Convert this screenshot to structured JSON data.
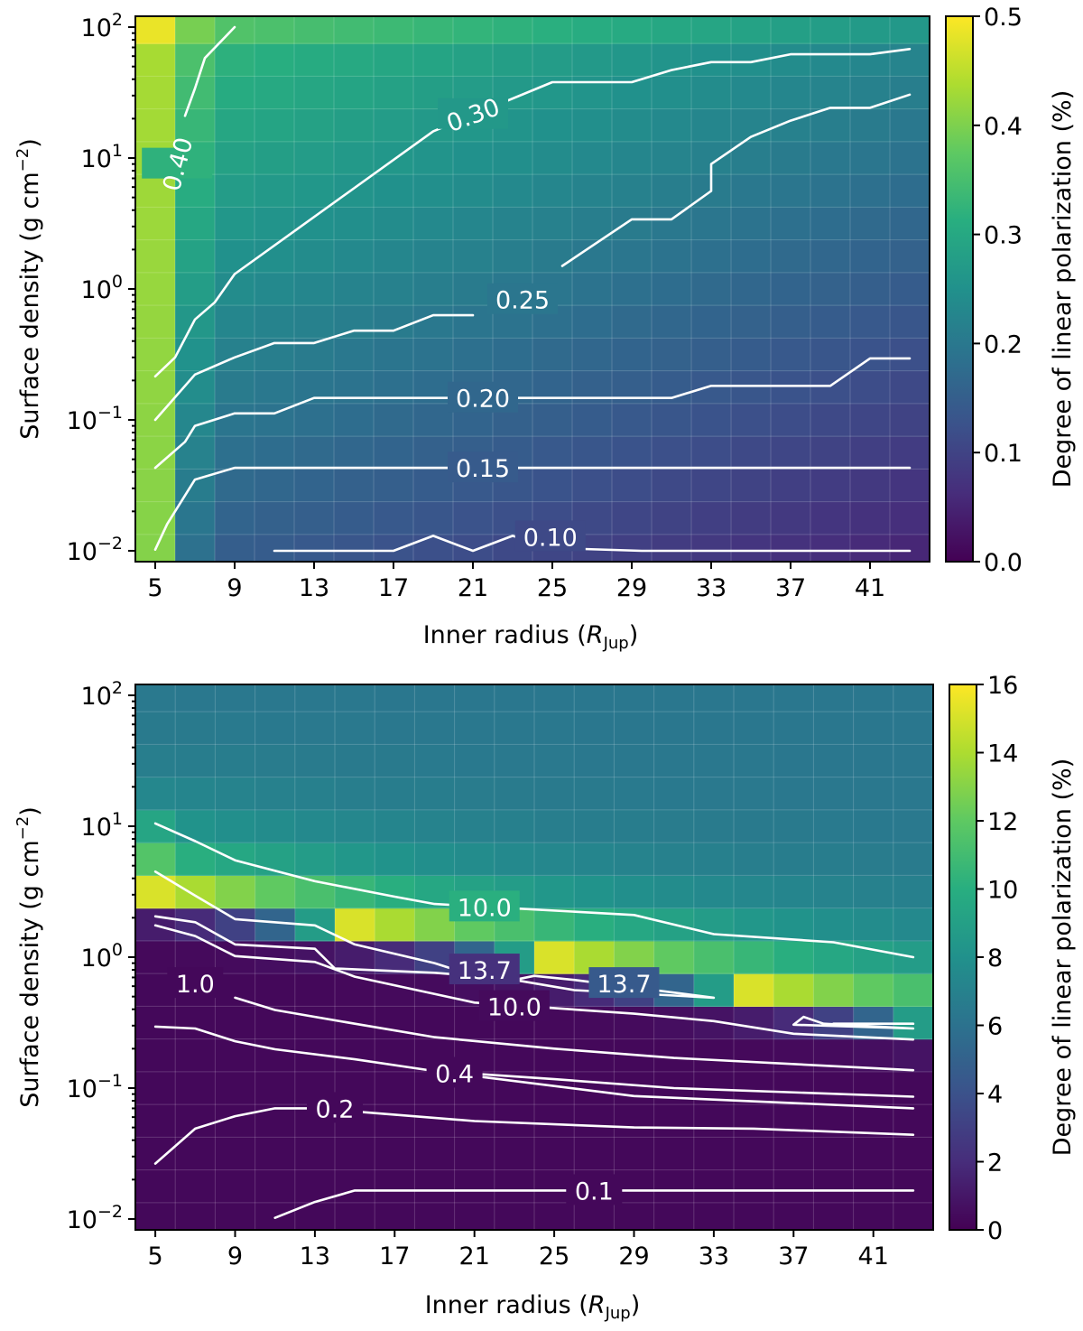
{
  "chart_data": [
    {
      "type": "heatmap",
      "panel": "top",
      "xlabel": "Inner radius (R_Jup)",
      "xlabel_main": "Inner radius (",
      "xlabel_symbol": "R",
      "xlabel_sub": "Jup",
      "xlabel_close": ")",
      "ylabel": "Surface density (g cm^-2)",
      "ylabel_main": "Surface density (g cm",
      "ylabel_sup": "−2",
      "ylabel_close": ")",
      "colorbar_label": "Degree of linear polarization (%)",
      "colorbar_range": [
        0,
        0.5
      ],
      "colorbar_ticks": [
        "0.0",
        "0.1",
        "0.2",
        "0.3",
        "0.4",
        "0.5"
      ],
      "x_ticks": [
        "5",
        "9",
        "13",
        "17",
        "21",
        "25",
        "29",
        "33",
        "37",
        "41"
      ],
      "y_ticks": [
        {
          "base": "10",
          "exp": "2"
        },
        {
          "base": "10",
          "exp": "1"
        },
        {
          "base": "10",
          "exp": "0"
        },
        {
          "base": "10",
          "exp": "−1"
        },
        {
          "base": "10",
          "exp": "−2"
        }
      ],
      "x_range": [
        4,
        44
      ],
      "y_range_log10": [
        -2.083,
        2.083
      ],
      "x_values": [
        5,
        7,
        9,
        11,
        13,
        15,
        17,
        19,
        21,
        23,
        25,
        27,
        29,
        31,
        33,
        35,
        37,
        39,
        41,
        43
      ],
      "y_log10_values": [
        -2.0,
        -1.75,
        -1.5,
        -1.25,
        -1.0,
        -0.75,
        -0.5,
        -0.25,
        0.0,
        0.25,
        0.5,
        0.75,
        1.0,
        1.25,
        1.5,
        1.75,
        2.0
      ],
      "z_model": {
        "left_column": [
          0.41,
          0.42,
          0.43,
          0.44,
          0.45,
          0.46,
          0.47
        ],
        "description": "values increase with surface density; first column highest"
      },
      "contours": [
        {
          "level": "0.10",
          "label": "0.10",
          "points": [
            [
              11,
              0.01
            ],
            [
              17,
              0.01
            ],
            [
              19,
              0.013
            ],
            [
              21,
              0.01
            ],
            [
              23,
              0.013
            ],
            [
              25,
              0.0105
            ],
            [
              29.5,
              0.01
            ],
            [
              43,
              0.01
            ]
          ]
        },
        {
          "level": "0.15",
          "label": "0.15",
          "points": [
            [
              5,
              0.0102
            ],
            [
              5.6,
              0.016
            ],
            [
              7,
              0.035
            ],
            [
              9,
              0.043
            ],
            [
              43,
              0.043
            ]
          ]
        },
        {
          "level": "0.20",
          "label": "0.20",
          "points": [
            [
              5,
              0.043
            ],
            [
              6.5,
              0.068
            ],
            [
              7,
              0.09
            ],
            [
              9,
              0.112
            ],
            [
              11,
              0.112
            ],
            [
              13,
              0.147
            ],
            [
              31,
              0.147
            ],
            [
              33,
              0.182
            ],
            [
              39,
              0.182
            ],
            [
              41,
              0.295
            ],
            [
              43,
              0.295
            ]
          ]
        },
        {
          "level": "0.25",
          "label": "0.25",
          "points": [
            [
              5,
              0.1
            ],
            [
              7,
              0.222
            ],
            [
              9,
              0.3
            ],
            [
              11,
              0.386
            ],
            [
              13,
              0.386
            ],
            [
              15,
              0.48
            ],
            [
              17,
              0.48
            ],
            [
              19,
              0.63
            ],
            [
              21,
              0.63
            ]
          ]
        },
        {
          "level": "0.25b",
          "label": "",
          "points": [
            [
              25.5,
              1.5
            ],
            [
              29,
              3.4
            ],
            [
              31,
              3.4
            ],
            [
              33,
              5.6
            ],
            [
              33,
              9.0
            ],
            [
              35,
              14.5
            ],
            [
              37,
              19.3
            ],
            [
              39,
              24.2
            ],
            [
              41,
              24.2
            ],
            [
              43,
              30.5
            ]
          ]
        },
        {
          "level": "0.30",
          "label": "0.30",
          "points": [
            [
              5,
              0.215
            ],
            [
              6,
              0.3
            ],
            [
              7,
              0.585
            ],
            [
              8,
              0.79
            ],
            [
              9,
              1.3
            ],
            [
              19,
              16.0
            ],
            [
              25,
              38.0
            ],
            [
              29,
              38.0
            ],
            [
              31,
              47.0
            ],
            [
              33,
              54.0
            ],
            [
              35,
              54.0
            ],
            [
              37,
              62.0
            ],
            [
              41,
              62.0
            ],
            [
              43,
              68.0
            ]
          ]
        },
        {
          "level": "0.40",
          "label": "0.40",
          "points": [
            [
              6.5,
              21.0
            ],
            [
              7,
              34.0
            ],
            [
              7.5,
              58.0
            ],
            [
              9,
              100.0
            ]
          ]
        }
      ],
      "contour_labels": [
        {
          "text": "0.10",
          "x": 24.9,
          "y": 0.0128
        },
        {
          "text": "0.15",
          "x": 21.5,
          "y": 0.043
        },
        {
          "text": "0.20",
          "x": 21.5,
          "y": 0.147
        },
        {
          "text": "0.25",
          "x": 23.5,
          "y": 0.83
        },
        {
          "text": "0.30",
          "x": 21.0,
          "y": 21.5
        },
        {
          "text": "0.40",
          "x": 6.1,
          "y": 9.0
        }
      ]
    },
    {
      "type": "heatmap",
      "panel": "bottom",
      "xlabel": "Inner radius (R_Jup)",
      "xlabel_main": "Inner radius (",
      "xlabel_symbol": "R",
      "xlabel_sub": "Jup",
      "xlabel_close": ")",
      "ylabel": "Surface density (g cm^-2)",
      "ylabel_main": "Surface density (g cm",
      "ylabel_sup": "−2",
      "ylabel_close": ")",
      "colorbar_label": "Degree of linear polarization (%)",
      "colorbar_range": [
        0,
        16
      ],
      "colorbar_ticks": [
        "0",
        "2",
        "4",
        "6",
        "8",
        "10",
        "12",
        "14",
        "16"
      ],
      "x_ticks": [
        "5",
        "9",
        "13",
        "17",
        "21",
        "25",
        "29",
        "33",
        "37",
        "41"
      ],
      "y_ticks": [
        {
          "base": "10",
          "exp": "2"
        },
        {
          "base": "10",
          "exp": "1"
        },
        {
          "base": "10",
          "exp": "0"
        },
        {
          "base": "10",
          "exp": "−1"
        },
        {
          "base": "10",
          "exp": "−2"
        }
      ],
      "x_range": [
        4,
        44
      ],
      "y_range_log10": [
        -2.083,
        2.083
      ],
      "x_values": [
        5,
        7,
        9,
        11,
        13,
        15,
        17,
        19,
        21,
        23,
        25,
        27,
        29,
        31,
        33,
        35,
        37,
        39,
        41,
        43
      ],
      "y_log10_values": [
        -2.0,
        -1.75,
        -1.5,
        -1.25,
        -1.0,
        -0.75,
        -0.5,
        -0.25,
        0.0,
        0.25,
        0.5,
        0.75,
        1.0,
        1.25,
        1.5,
        1.75,
        2.0
      ],
      "z_model": {
        "description": "peak band (~15%) moving from log10 Sigma 0.5 at 5 R_Jup to -0.45 at 43 R_Jup; background ~6.5% above, <1% below"
      },
      "contours": [
        {
          "level": "0.1",
          "label": "0.1",
          "points": [
            [
              11,
              0.0102
            ],
            [
              13,
              0.0135
            ],
            [
              15,
              0.0165
            ],
            [
              43,
              0.0165
            ]
          ]
        },
        {
          "level": "0.2",
          "label": "0.2",
          "points": [
            [
              5,
              0.0265
            ],
            [
              7,
              0.049
            ],
            [
              9,
              0.061
            ],
            [
              11,
              0.07
            ],
            [
              13,
              0.07
            ],
            [
              21,
              0.056
            ],
            [
              29,
              0.05
            ],
            [
              35,
              0.049
            ],
            [
              43,
              0.044
            ]
          ]
        },
        {
          "level": "0.4",
          "label": "0.4",
          "points": [
            [
              5,
              0.295
            ],
            [
              7,
              0.285
            ],
            [
              9,
              0.228
            ],
            [
              11,
              0.198
            ],
            [
              15,
              0.166
            ],
            [
              19,
              0.135
            ],
            [
              25,
              0.117
            ],
            [
              31,
              0.1
            ],
            [
              43,
              0.086
            ]
          ]
        },
        {
          "level": "0.4b",
          "label": "",
          "points": [
            [
              19,
              0.135
            ],
            [
              29,
              0.087
            ],
            [
              43,
              0.07
            ]
          ]
        },
        {
          "level": "1.0",
          "label": "1.0",
          "points": [
            [
              9,
              0.49
            ],
            [
              11,
              0.395
            ],
            [
              15,
              0.31
            ],
            [
              19,
              0.245
            ],
            [
              25,
              0.2
            ],
            [
              31,
              0.17
            ],
            [
              43,
              0.137
            ]
          ]
        },
        {
          "level": "10.0",
          "label": "10.0",
          "points": [
            [
              5,
              10.5
            ],
            [
              7,
              7.7
            ],
            [
              9,
              5.5
            ],
            [
              13,
              3.8
            ],
            [
              17,
              2.9
            ],
            [
              19,
              2.55
            ],
            [
              29,
              2.1
            ],
            [
              33,
              1.5
            ],
            [
              39,
              1.3
            ],
            [
              43,
              1.0
            ]
          ]
        },
        {
          "level": "10.0b",
          "label": "10.0",
          "points": [
            [
              5,
              1.75
            ],
            [
              7,
              1.45
            ],
            [
              9,
              1.02
            ],
            [
              13,
              0.92
            ],
            [
              15,
              0.71
            ],
            [
              21,
              0.45
            ],
            [
              29,
              0.37
            ],
            [
              33,
              0.325
            ],
            [
              37,
              0.26
            ],
            [
              43,
              0.235
            ]
          ]
        },
        {
          "level": "13.7",
          "label": "13.7",
          "points": [
            [
              5,
              4.5
            ],
            [
              7,
              2.95
            ],
            [
              9,
              1.95
            ],
            [
              13,
              1.75
            ],
            [
              15,
              1.25
            ],
            [
              19,
              0.9
            ],
            [
              21,
              0.72
            ]
          ]
        },
        {
          "level": "13.7b",
          "label": "13.7",
          "points": [
            [
              5,
              2.05
            ],
            [
              7,
              1.85
            ],
            [
              9,
              1.25
            ],
            [
              13,
              1.16
            ],
            [
              14,
              0.82
            ],
            [
              19,
              0.76
            ],
            [
              21,
              0.72
            ]
          ]
        },
        {
          "level": "13.7c",
          "label": "",
          "points": [
            [
              23,
              0.67
            ],
            [
              24,
              0.72
            ],
            [
              26,
              0.67
            ],
            [
              33,
              0.49
            ],
            [
              26,
              0.56
            ],
            [
              23,
              0.67
            ]
          ]
        },
        {
          "level": "13.7d",
          "label": "",
          "points": [
            [
              37,
              0.305
            ],
            [
              37.5,
              0.35
            ],
            [
              38.5,
              0.31
            ],
            [
              43,
              0.285
            ],
            [
              37,
              0.305
            ]
          ]
        },
        {
          "level": "13.7e",
          "label": "",
          "points": [
            [
              39,
              0.31
            ],
            [
              43,
              0.31
            ]
          ]
        }
      ],
      "contour_labels": [
        {
          "text": "0.1",
          "x": 27.0,
          "y": 0.0165
        },
        {
          "text": "0.2",
          "x": 14.0,
          "y": 0.07
        },
        {
          "text": "0.4",
          "x": 20.0,
          "y": 0.13
        },
        {
          "text": "1.0",
          "x": 7.0,
          "y": 0.63
        },
        {
          "text": "10.0",
          "x": 21.5,
          "y": 2.42
        },
        {
          "text": "10.0",
          "x": 23.0,
          "y": 0.42
        },
        {
          "text": "13.7",
          "x": 21.5,
          "y": 0.8
        },
        {
          "text": "13.7",
          "x": 28.5,
          "y": 0.63
        }
      ]
    }
  ]
}
